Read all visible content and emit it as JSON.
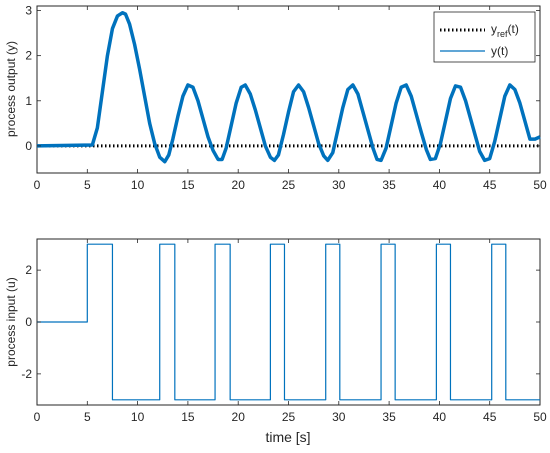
{
  "chart_data": [
    {
      "type": "line",
      "ylabel": "process output (y)",
      "xlabel": "",
      "xlim": [
        0,
        50
      ],
      "ylim": [
        -0.6,
        3.1
      ],
      "xticks": [
        0,
        5,
        10,
        15,
        20,
        25,
        30,
        35,
        40,
        45,
        50
      ],
      "yticks": [
        0,
        1,
        2,
        3
      ],
      "grid": false,
      "legend": "top-right",
      "series": [
        {
          "name": "y_ref(t)",
          "style": "dotted",
          "color": "#000000",
          "x": [
            0,
            50
          ],
          "y": [
            0,
            0
          ]
        },
        {
          "name": "y(t)",
          "style": "solid",
          "color": "#0072BD",
          "x": [
            0,
            5.5,
            6.0,
            6.5,
            7.0,
            7.5,
            8.0,
            8.5,
            8.8,
            9.2,
            9.7,
            10.2,
            10.7,
            11.2,
            11.7,
            12.2,
            12.7,
            13.1,
            13.5,
            14.0,
            14.5,
            15.0,
            15.5,
            16.0,
            16.5,
            17.0,
            17.5,
            18.0,
            18.4,
            18.8,
            19.3,
            19.8,
            20.3,
            20.7,
            21.2,
            21.7,
            22.2,
            22.7,
            23.2,
            23.6,
            24.0,
            24.5,
            25.0,
            25.5,
            26.0,
            26.5,
            27.0,
            27.5,
            28.0,
            28.5,
            28.9,
            29.4,
            29.9,
            30.4,
            30.9,
            31.4,
            31.9,
            32.4,
            32.9,
            33.4,
            33.8,
            34.2,
            34.7,
            35.2,
            35.7,
            36.2,
            36.7,
            37.2,
            37.7,
            38.2,
            38.7,
            39.1,
            39.6,
            40.1,
            40.6,
            41.1,
            41.6,
            42.1,
            42.6,
            43.1,
            43.6,
            44.0,
            44.5,
            45.0,
            45.5,
            46.0,
            46.5,
            47.0,
            47.5,
            48.0,
            48.5,
            49.0,
            49.5,
            50.0
          ],
          "y": [
            0,
            0.02,
            0.4,
            1.2,
            2.0,
            2.6,
            2.88,
            2.95,
            2.92,
            2.7,
            2.25,
            1.7,
            1.1,
            0.5,
            0.05,
            -0.25,
            -0.35,
            -0.2,
            0.15,
            0.65,
            1.1,
            1.35,
            1.3,
            1.0,
            0.6,
            0.2,
            -0.1,
            -0.3,
            -0.3,
            -0.05,
            0.45,
            0.95,
            1.3,
            1.35,
            1.15,
            0.8,
            0.4,
            0.0,
            -0.25,
            -0.32,
            -0.2,
            0.25,
            0.75,
            1.2,
            1.35,
            1.2,
            0.85,
            0.45,
            0.05,
            -0.22,
            -0.32,
            -0.15,
            0.35,
            0.85,
            1.25,
            1.35,
            1.15,
            0.75,
            0.35,
            -0.05,
            -0.3,
            -0.32,
            -0.05,
            0.45,
            0.95,
            1.3,
            1.35,
            1.1,
            0.7,
            0.3,
            -0.08,
            -0.3,
            -0.28,
            0.05,
            0.55,
            1.05,
            1.33,
            1.3,
            1.0,
            0.6,
            0.2,
            -0.12,
            -0.32,
            -0.28,
            0.1,
            0.6,
            1.1,
            1.35,
            1.25,
            0.95,
            0.55,
            0.15,
            0.15,
            0.2
          ]
        }
      ]
    },
    {
      "type": "line",
      "ylabel": "process input (u)",
      "xlabel": "time [s]",
      "xlim": [
        0,
        50
      ],
      "ylim": [
        -3.2,
        3.2
      ],
      "xticks": [
        0,
        5,
        10,
        15,
        20,
        25,
        30,
        35,
        40,
        45,
        50
      ],
      "yticks": [
        -2,
        0,
        2
      ],
      "grid": false,
      "series": [
        {
          "name": "",
          "style": "solid",
          "color": "#0072BD",
          "x": [
            0,
            5,
            5,
            7.5,
            7.5,
            12.2,
            12.2,
            13.7,
            13.7,
            17.7,
            17.7,
            19.2,
            19.2,
            23.2,
            23.2,
            24.6,
            24.6,
            28.7,
            28.7,
            30.1,
            30.1,
            34.2,
            34.2,
            35.6,
            35.6,
            39.7,
            39.7,
            41.1,
            41.1,
            45.2,
            45.2,
            46.6,
            46.6,
            50
          ],
          "y": [
            0,
            0,
            3,
            3,
            -3,
            -3,
            3,
            3,
            -3,
            -3,
            3,
            3,
            -3,
            -3,
            3,
            3,
            -3,
            -3,
            3,
            3,
            -3,
            -3,
            3,
            3,
            -3,
            -3,
            3,
            3,
            -3,
            -3,
            3,
            3,
            -3,
            -3
          ]
        }
      ]
    }
  ],
  "legend": {
    "yref_main": "y",
    "yref_sub": "ref",
    "yref_tail": "(t)",
    "y_label": "y(t)"
  }
}
